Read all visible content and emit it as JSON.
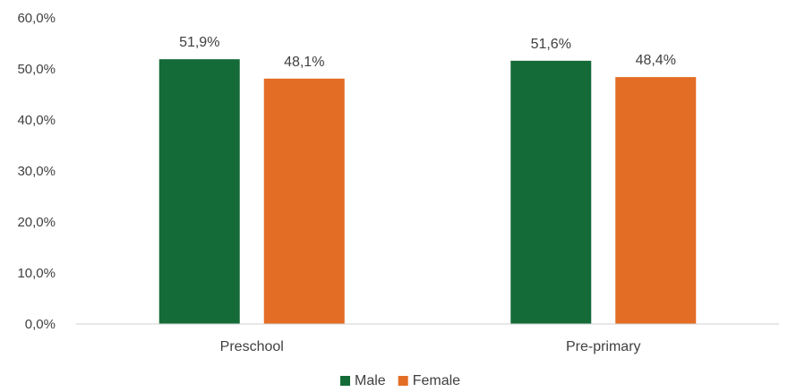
{
  "chart_data": {
    "type": "bar",
    "categories": [
      "Preschool",
      "Pre-primary"
    ],
    "series": [
      {
        "name": "Male",
        "color": "#156b38",
        "values": [
          51.9,
          51.6
        ],
        "labels": [
          "51,9%",
          "51,6%"
        ]
      },
      {
        "name": "Female",
        "color": "#e46d25",
        "values": [
          48.1,
          48.4
        ],
        "labels": [
          "48,1%",
          "48,4%"
        ]
      }
    ],
    "ylim": [
      0,
      60
    ],
    "yticks": [
      0,
      10,
      20,
      30,
      40,
      50,
      60
    ],
    "ytick_labels": [
      "0,0%",
      "10,0%",
      "20,0%",
      "30,0%",
      "40,0%",
      "50,0%",
      "60,0%"
    ],
    "grid": false,
    "legend_position": "bottom"
  }
}
